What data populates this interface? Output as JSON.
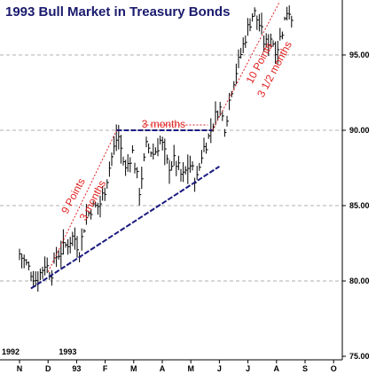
{
  "chart_data": {
    "type": "ohlc",
    "title": "1993 Bull Market in Treasury Bonds",
    "xlabel": "",
    "ylabel": "",
    "x_ticks": [
      "N",
      "D",
      "93",
      "F",
      "M",
      "A",
      "M",
      "J",
      "J",
      "A",
      "S",
      "O"
    ],
    "year_labels": [
      {
        "text": "1992",
        "month_index": 0
      },
      {
        "text": "1993",
        "month_index": 2
      }
    ],
    "y_ticks": [
      "75.00",
      "80.00",
      "85.00",
      "90.00",
      "95.00"
    ],
    "ylim": [
      75,
      99
    ],
    "grid": "horizontal dashed at 80, 85, 90, 95",
    "price_path": [
      {
        "m": 0.0,
        "p": 81.8
      },
      {
        "m": 0.3,
        "p": 80.9
      },
      {
        "m": 0.6,
        "p": 80.0
      },
      {
        "m": 0.9,
        "p": 81.2
      },
      {
        "m": 1.1,
        "p": 80.4
      },
      {
        "m": 1.3,
        "p": 81.7
      },
      {
        "m": 1.6,
        "p": 82.3
      },
      {
        "m": 1.9,
        "p": 83.0
      },
      {
        "m": 2.1,
        "p": 82.0
      },
      {
        "m": 2.3,
        "p": 84.0
      },
      {
        "m": 2.5,
        "p": 84.8
      },
      {
        "m": 2.8,
        "p": 85.0
      },
      {
        "m": 3.0,
        "p": 86.2
      },
      {
        "m": 3.2,
        "p": 88.0
      },
      {
        "m": 3.45,
        "p": 89.8
      },
      {
        "m": 3.7,
        "p": 87.3
      },
      {
        "m": 3.95,
        "p": 88.6
      },
      {
        "m": 4.2,
        "p": 86.0
      },
      {
        "m": 4.45,
        "p": 89.0
      },
      {
        "m": 4.7,
        "p": 88.4
      },
      {
        "m": 4.95,
        "p": 89.4
      },
      {
        "m": 5.2,
        "p": 87.6
      },
      {
        "m": 5.45,
        "p": 88.0
      },
      {
        "m": 5.7,
        "p": 86.8
      },
      {
        "m": 5.95,
        "p": 87.8
      },
      {
        "m": 6.2,
        "p": 86.6
      },
      {
        "m": 6.4,
        "p": 88.6
      },
      {
        "m": 6.6,
        "p": 89.4
      },
      {
        "m": 6.8,
        "p": 90.6
      },
      {
        "m": 7.0,
        "p": 91.6
      },
      {
        "m": 7.2,
        "p": 90.2
      },
      {
        "m": 7.4,
        "p": 92.6
      },
      {
        "m": 7.6,
        "p": 94.0
      },
      {
        "m": 7.8,
        "p": 95.4
      },
      {
        "m": 8.0,
        "p": 96.8
      },
      {
        "m": 8.2,
        "p": 97.9
      },
      {
        "m": 8.4,
        "p": 97.0
      },
      {
        "m": 8.6,
        "p": 95.6
      },
      {
        "m": 8.8,
        "p": 96.2
      },
      {
        "m": 9.0,
        "p": 95.3
      },
      {
        "m": 9.2,
        "p": 96.6
      },
      {
        "m": 9.4,
        "p": 98.2
      },
      {
        "m": 9.55,
        "p": 97.4
      }
    ],
    "annotations": [
      {
        "text": "3 months",
        "type": "horizontal_span",
        "from_month": 3.4,
        "to_month": 6.75,
        "price": 90.0
      },
      {
        "text": "9 Points",
        "type": "rise_label"
      },
      {
        "text": "3 months",
        "type": "rise_label"
      },
      {
        "text": "10 Points",
        "type": "rise_label"
      },
      {
        "text": "3 1/2 months",
        "type": "rise_label"
      }
    ],
    "trendlines": [
      {
        "from": {
          "m": 0.4,
          "p": 79.5
        },
        "to": {
          "m": 7.0,
          "p": 87.6
        }
      },
      {
        "from": {
          "m": 3.4,
          "p": 90.0
        },
        "to": {
          "m": 6.75,
          "p": 90.0
        }
      }
    ],
    "colors": {
      "title": "#1a1a6e",
      "bars": "#000000",
      "trendline": "#1a1a80",
      "annotation": "#e02020",
      "grid": "#b0b0b0"
    }
  }
}
